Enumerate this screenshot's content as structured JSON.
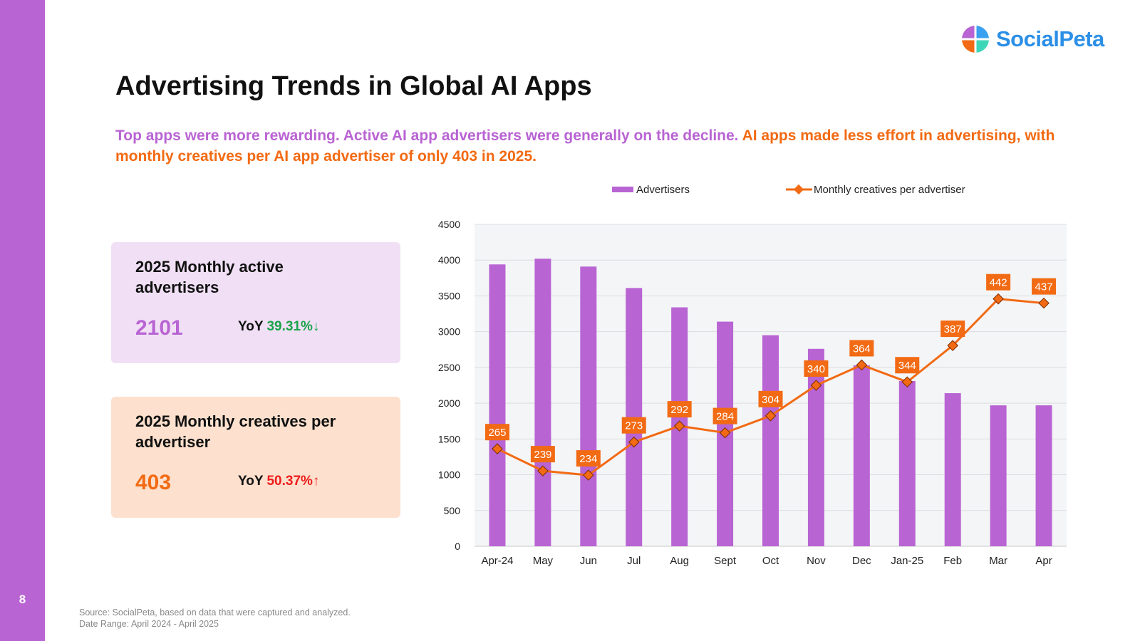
{
  "page_number": "8",
  "brand": {
    "name": "SocialPeta",
    "logo_colors": [
      "#3aa0f0",
      "#b964d3",
      "#f26a13",
      "#3ed6b8"
    ]
  },
  "title": "Advertising Trends in Global AI Apps",
  "subtitle": {
    "part1": "Top apps were more rewarding. Active AI app advertisers were generally on the decline.",
    "part2": " AI apps made less effort in advertising, with monthly creatives per AI app advertiser of only 403 in 2025."
  },
  "cards": [
    {
      "title": "2025 Monthly active advertisers",
      "value": "2101",
      "yoy_label": "YoY",
      "yoy_value": "39.31%",
      "yoy_arrow": "↓"
    },
    {
      "title": "2025 Monthly creatives per advertiser",
      "value": "403",
      "yoy_label": "YoY",
      "yoy_value": "50.37%",
      "yoy_arrow": "↑"
    }
  ],
  "source": {
    "line1": "Source: SocialPeta, based on data that were captured and analyzed.",
    "line2": "Date Range: April 2024 - April 2025"
  },
  "colors": {
    "purple": "#b964d3",
    "orange": "#f26a13",
    "plot_bg": "#f4f5f7",
    "grid": "#dcdde0"
  },
  "chart_data": {
    "type": "bar",
    "categories": [
      "Apr-24",
      "May",
      "Jun",
      "Jul",
      "Aug",
      "Sept",
      "Oct",
      "Nov",
      "Dec",
      "Jan-25",
      "Feb",
      "Mar",
      "Apr"
    ],
    "ylim": [
      0,
      4500
    ],
    "yticks": [
      0,
      500,
      1000,
      1500,
      2000,
      2500,
      3000,
      3500,
      4000,
      4500
    ],
    "grid": true,
    "legend": "top",
    "series": [
      {
        "name": "Advertisers",
        "type": "bar",
        "color": "#b964d3",
        "values": [
          3940,
          4020,
          3910,
          3610,
          3340,
          3140,
          2950,
          2760,
          2530,
          2310,
          2140,
          1970,
          1970
        ]
      },
      {
        "name": "Monthly creatives per advertiser",
        "type": "line",
        "color": "#f26a13",
        "values": [
          265,
          239,
          234,
          273,
          292,
          284,
          304,
          340,
          364,
          344,
          387,
          442,
          437
        ]
      }
    ]
  }
}
